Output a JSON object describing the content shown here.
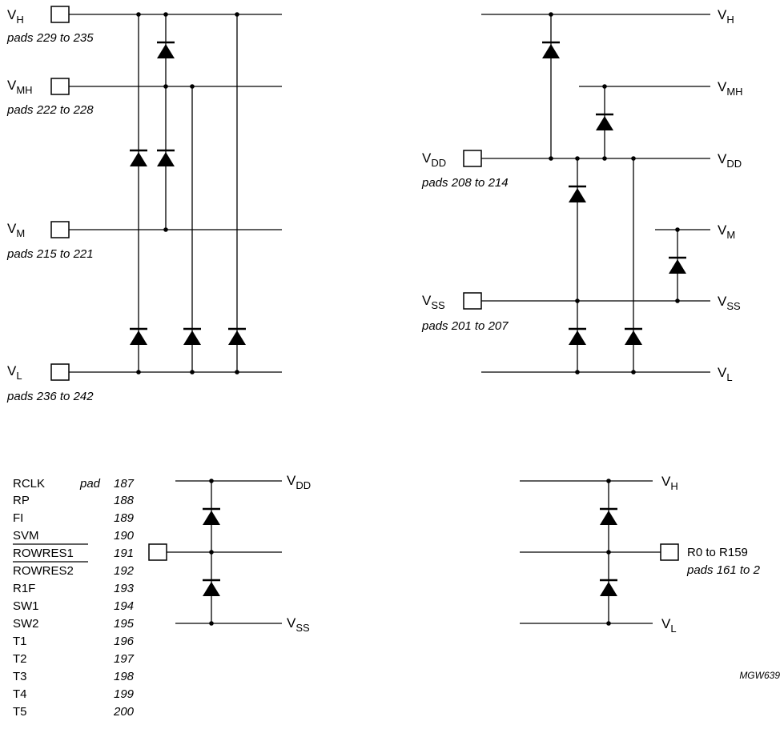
{
  "diagram1": {
    "pins": [
      {
        "base": "V",
        "sub": "H",
        "pads": "pads 229 to 235"
      },
      {
        "base": "V",
        "sub": "MH",
        "pads": "pads 222 to 228"
      },
      {
        "base": "V",
        "sub": "M",
        "pads": "pads 215 to 221"
      },
      {
        "base": "V",
        "sub": "L",
        "pads": "pads 236 to 242"
      }
    ]
  },
  "diagram2": {
    "rails": [
      {
        "base": "V",
        "sub": "H"
      },
      {
        "base": "V",
        "sub": "MH"
      },
      {
        "base": "V",
        "sub": "DD"
      },
      {
        "base": "V",
        "sub": "M"
      },
      {
        "base": "V",
        "sub": "SS"
      },
      {
        "base": "V",
        "sub": "L"
      }
    ],
    "pins": [
      {
        "base": "V",
        "sub": "DD",
        "pads": "pads 208 to 214"
      },
      {
        "base": "V",
        "sub": "SS",
        "pads": "pads 201 to 207"
      }
    ]
  },
  "diagram3": {
    "pad_table": [
      {
        "name": "RCLK",
        "pad_prefix": "pad",
        "number": "187",
        "overline": false
      },
      {
        "name": "RP",
        "pad_prefix": "",
        "number": "188",
        "overline": false
      },
      {
        "name": "FI",
        "pad_prefix": "",
        "number": "189",
        "overline": false
      },
      {
        "name": "SVM",
        "pad_prefix": "",
        "number": "190",
        "overline": false
      },
      {
        "name": "ROWRES1",
        "pad_prefix": "",
        "number": "191",
        "overline": true
      },
      {
        "name": "ROWRES2",
        "pad_prefix": "",
        "number": "192",
        "overline": true
      },
      {
        "name": "R1F",
        "pad_prefix": "",
        "number": "193",
        "overline": false
      },
      {
        "name": "SW1",
        "pad_prefix": "",
        "number": "194",
        "overline": false
      },
      {
        "name": "SW2",
        "pad_prefix": "",
        "number": "195",
        "overline": false
      },
      {
        "name": "T1",
        "pad_prefix": "",
        "number": "196",
        "overline": false
      },
      {
        "name": "T2",
        "pad_prefix": "",
        "number": "197",
        "overline": false
      },
      {
        "name": "T3",
        "pad_prefix": "",
        "number": "198",
        "overline": false
      },
      {
        "name": "T4",
        "pad_prefix": "",
        "number": "199",
        "overline": false
      },
      {
        "name": "T5",
        "pad_prefix": "",
        "number": "200",
        "overline": false
      }
    ],
    "top_rail": {
      "base": "V",
      "sub": "DD"
    },
    "bottom_rail": {
      "base": "V",
      "sub": "SS"
    }
  },
  "diagram4": {
    "top_rail": {
      "base": "V",
      "sub": "H"
    },
    "bottom_rail": {
      "base": "V",
      "sub": "L"
    },
    "pin_label": "R0 to R159",
    "pin_pads": "pads 161 to 2"
  },
  "figure_code": "MGW639"
}
